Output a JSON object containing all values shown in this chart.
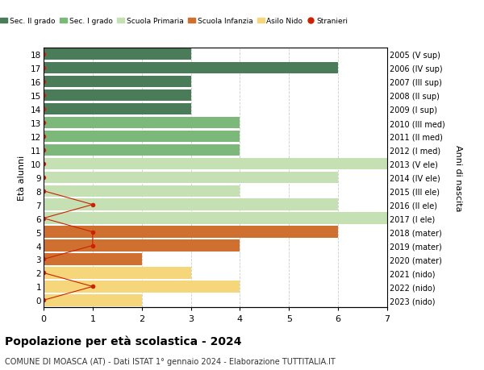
{
  "ages": [
    18,
    17,
    16,
    15,
    14,
    13,
    12,
    11,
    10,
    9,
    8,
    7,
    6,
    5,
    4,
    3,
    2,
    1,
    0
  ],
  "years_labels": [
    "2005 (V sup)",
    "2006 (IV sup)",
    "2007 (III sup)",
    "2008 (II sup)",
    "2009 (I sup)",
    "2010 (III med)",
    "2011 (II med)",
    "2012 (I med)",
    "2013 (V ele)",
    "2014 (IV ele)",
    "2015 (III ele)",
    "2016 (II ele)",
    "2017 (I ele)",
    "2018 (mater)",
    "2019 (mater)",
    "2020 (mater)",
    "2021 (nido)",
    "2022 (nido)",
    "2023 (nido)"
  ],
  "bar_values": [
    3,
    6,
    3,
    3,
    3,
    4,
    4,
    4,
    7,
    6,
    4,
    6,
    7,
    6,
    4,
    2,
    3,
    4,
    2
  ],
  "bar_colors": [
    "#4a7c59",
    "#4a7c59",
    "#4a7c59",
    "#4a7c59",
    "#4a7c59",
    "#7cb87a",
    "#7cb87a",
    "#7cb87a",
    "#c5e0b3",
    "#c5e0b3",
    "#c5e0b3",
    "#c5e0b3",
    "#c5e0b3",
    "#d07030",
    "#d07030",
    "#d07030",
    "#f5d67a",
    "#f5d67a",
    "#f5d67a"
  ],
  "stranieri_ages": [
    18,
    17,
    16,
    15,
    14,
    13,
    12,
    11,
    10,
    9,
    8,
    7,
    6,
    5,
    4,
    3,
    2,
    1,
    0
  ],
  "stranieri_values": [
    0,
    0,
    0,
    0,
    0,
    0,
    0,
    0,
    0,
    0,
    0,
    1,
    0,
    1,
    1,
    0,
    0,
    1,
    0
  ],
  "legend_labels": [
    "Sec. II grado",
    "Sec. I grado",
    "Scuola Primaria",
    "Scuola Infanzia",
    "Asilo Nido",
    "Stranieri"
  ],
  "legend_colors": [
    "#4a7c59",
    "#7cb87a",
    "#c5e0b3",
    "#d07030",
    "#f5d67a",
    "#cc2200"
  ],
  "ylabel": "Età alunni",
  "ylabel_right": "Anni di nascita",
  "xlim": [
    0,
    7
  ],
  "xticks": [
    0,
    1,
    2,
    3,
    4,
    5,
    6,
    7
  ],
  "title": "Popolazione per età scolastica - 2024",
  "subtitle": "COMUNE DI MOASCA (AT) - Dati ISTAT 1° gennaio 2024 - Elaborazione TUTTITALIA.IT",
  "bar_height": 0.85,
  "background_color": "#ffffff",
  "grid_color": "#cccccc"
}
